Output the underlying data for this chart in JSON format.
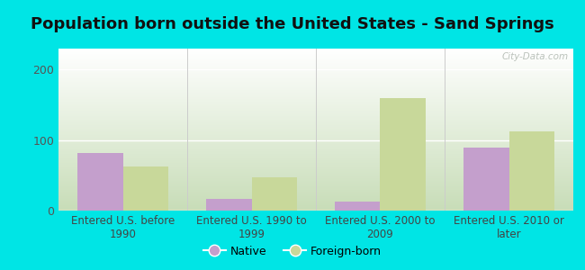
{
  "title": "Population born outside the United States - Sand Springs",
  "categories": [
    "Entered U.S. before\n1990",
    "Entered U.S. 1990 to\n1999",
    "Entered U.S. 2000 to\n2009",
    "Entered U.S. 2010 or\nlater"
  ],
  "native_values": [
    82,
    17,
    13,
    90
  ],
  "foreign_values": [
    62,
    47,
    160,
    112
  ],
  "native_color": "#c49fcc",
  "foreign_color": "#c8d89a",
  "background_color": "#00e5e5",
  "grad_top": "#ffffff",
  "grad_bottom": "#c8ddb8",
  "ylim": [
    0,
    230
  ],
  "yticks": [
    0,
    100,
    200
  ],
  "bar_width": 0.35,
  "legend_native": "Native",
  "legend_foreign": "Foreign-born",
  "watermark": "City-Data.com",
  "title_fontsize": 13,
  "tick_fontsize": 9,
  "xtick_fontsize": 8.5
}
